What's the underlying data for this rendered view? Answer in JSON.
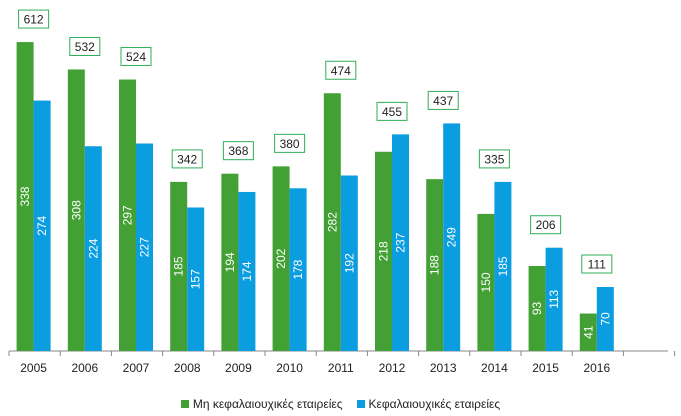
{
  "chart_data": {
    "type": "bar",
    "stacked": false,
    "categories": [
      "2005",
      "2006",
      "2007",
      "2008",
      "2009",
      "2010",
      "2011",
      "2012",
      "2013",
      "2014",
      "2015",
      "2016"
    ],
    "series": [
      {
        "name": "Μη κεφαλαιουχικές εταιρείες",
        "color": "#43a035",
        "values": [
          338,
          308,
          297,
          185,
          194,
          202,
          282,
          218,
          188,
          150,
          93,
          41
        ]
      },
      {
        "name": "Κεφαλαιουχικές εταιρείες",
        "color": "#0a9de0",
        "values": [
          274,
          224,
          227,
          157,
          174,
          178,
          192,
          237,
          249,
          185,
          113,
          70
        ]
      }
    ],
    "totals": [
      612,
      532,
      524,
      342,
      368,
      380,
      474,
      455,
      437,
      335,
      206,
      111
    ],
    "title": "",
    "xlabel": "",
    "ylabel": "",
    "ylim": [
      0,
      340
    ],
    "grid": false,
    "legend_position": "bottom"
  }
}
